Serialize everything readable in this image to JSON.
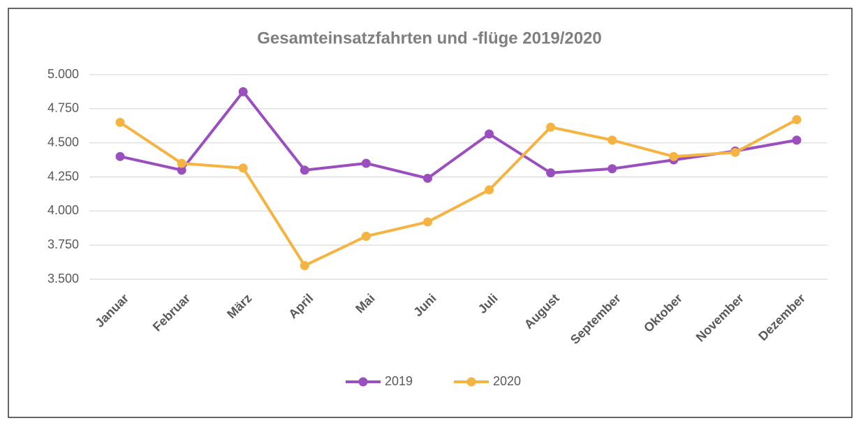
{
  "chart_data": {
    "type": "line",
    "title": "Gesamteinsatzfahrten und -flüge 2019/2020",
    "categories": [
      "Januar",
      "Februar",
      "März",
      "April",
      "Mai",
      "Juni",
      "Juli",
      "August",
      "September",
      "Oktober",
      "November",
      "Dezember"
    ],
    "series": [
      {
        "name": "2019",
        "color": "#9b4fbf",
        "values": [
          4400,
          4300,
          4875,
          4300,
          4350,
          4240,
          4565,
          4280,
          4310,
          4375,
          4440,
          4520
        ]
      },
      {
        "name": "2020",
        "color": "#f5b342",
        "values": [
          4650,
          4350,
          4315,
          3600,
          3815,
          3920,
          4155,
          4615,
          4520,
          4400,
          4430,
          4670
        ]
      }
    ],
    "ylim": [
      3500,
      5000
    ],
    "yticks": [
      {
        "value": 3500,
        "label": "3.500"
      },
      {
        "value": 3750,
        "label": "3.750"
      },
      {
        "value": 4000,
        "label": "4.000"
      },
      {
        "value": 4250,
        "label": "4.250"
      },
      {
        "value": 4500,
        "label": "4.500"
      },
      {
        "value": 4750,
        "label": "4.750"
      },
      {
        "value": 5000,
        "label": "5.000"
      }
    ],
    "grid": true,
    "legend": "bottom"
  }
}
